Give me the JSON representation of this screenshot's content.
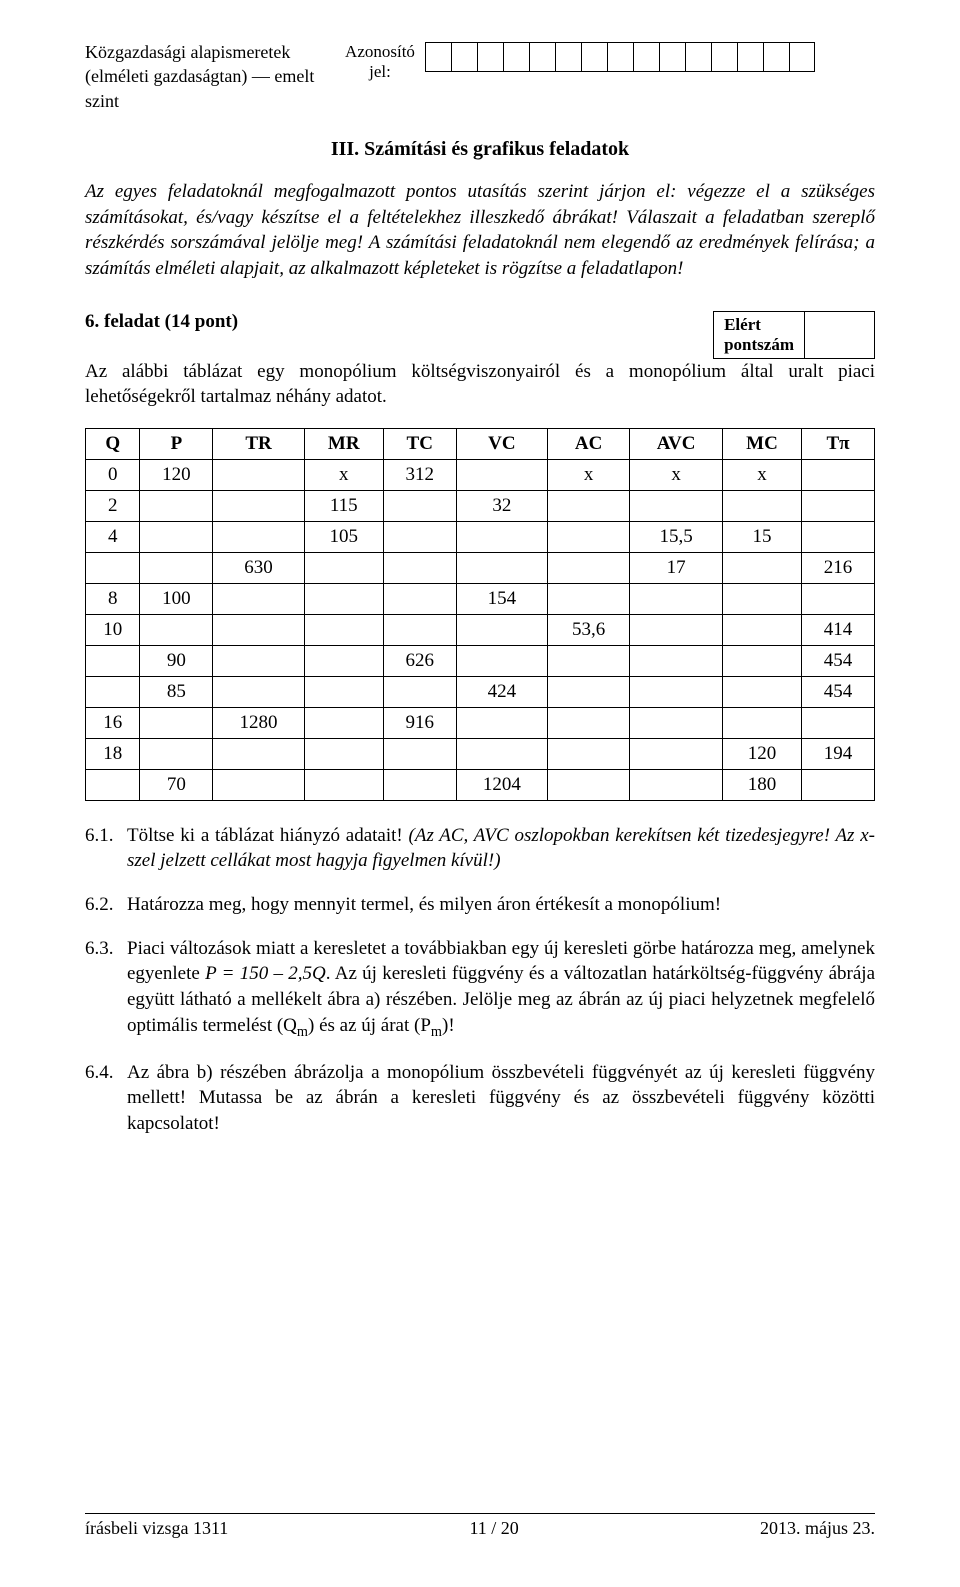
{
  "header": {
    "left1": "Közgazdasági alapismeretek",
    "left2": "(elméleti gazdaságtan) — emelt szint",
    "mid1": "Azonosító",
    "mid2": "jel:",
    "box_count": 15
  },
  "section_title": "III. Számítási és grafikus feladatok",
  "intro": {
    "t1": "Az egyes feladatoknál megfogalmazott pontos utasítás szerint járjon el: végezze el a szükséges számításokat, és/vagy készítse el a feltételekhez illeszkedő ábrákat! Válaszait a feladatban szereplő részkérdés sorszámával jelölje meg! A számítási feladatoknál nem elegendő az eredmények felírása; a számítás elméleti alapjait, az alkalmazott képleteket is rögzítse a feladatlapon!"
  },
  "task6": {
    "title": "6. feladat (14 pont)",
    "score_label1": "Elért",
    "score_label2": "pontszám",
    "text": "Az alábbi táblázat egy monopólium költségviszonyairól és a monopólium által uralt piaci lehetőségekről tartalmaz néhány adatot."
  },
  "table": {
    "headers": [
      "Q",
      "P",
      "TR",
      "MR",
      "TC",
      "VC",
      "AC",
      "AVC",
      "MC",
      "Tπ"
    ],
    "rows": [
      [
        "0",
        "120",
        "",
        "x",
        "312",
        "",
        "x",
        "x",
        "x",
        ""
      ],
      [
        "2",
        "",
        "",
        "115",
        "",
        "32",
        "",
        "",
        "",
        ""
      ],
      [
        "4",
        "",
        "",
        "105",
        "",
        "",
        "",
        "15,5",
        "15",
        ""
      ],
      [
        "",
        "",
        "630",
        "",
        "",
        "",
        "",
        "17",
        "",
        "216"
      ],
      [
        "8",
        "100",
        "",
        "",
        "",
        "154",
        "",
        "",
        "",
        ""
      ],
      [
        "10",
        "",
        "",
        "",
        "",
        "",
        "53,6",
        "",
        "",
        "414"
      ],
      [
        "",
        "90",
        "",
        "",
        "626",
        "",
        "",
        "",
        "",
        "454"
      ],
      [
        "",
        "85",
        "",
        "",
        "",
        "424",
        "",
        "",
        "",
        "454"
      ],
      [
        "16",
        "",
        "1280",
        "",
        "916",
        "",
        "",
        "",
        "",
        ""
      ],
      [
        "18",
        "",
        "",
        "",
        "",
        "",
        "",
        "",
        "120",
        "194"
      ],
      [
        "",
        "70",
        "",
        "",
        "",
        "1204",
        "",
        "",
        "180",
        ""
      ]
    ]
  },
  "q61": {
    "num": "6.1.",
    "a": "Töltse ki a táblázat hiányzó adatait! ",
    "b": "(Az AC, AVC oszlopokban kerekítsen két tizedesjegyre! Az x-szel jelzett cellákat most hagyja figyelmen kívül!)"
  },
  "q62": {
    "num": "6.2.",
    "a": "Határozza meg, hogy mennyit termel, és milyen áron értékesít a monopólium!"
  },
  "q63": {
    "num": "6.3.",
    "a": "Piaci változások miatt a keresletet a továbbiakban egy új keresleti görbe határozza meg, amelynek egyenlete ",
    "b": "P = 150 – 2,5Q",
    "c": ". Az új keresleti függvény és a változatlan határköltség-függvény ábrája együtt látható a mellékelt ábra a) részében. Jelölje meg az ábrán az új piaci helyzetnek megfelelő optimális termelést (Q",
    "d": ") és az új árat (P",
    "e": ")!"
  },
  "q64": {
    "num": "6.4.",
    "a": "Az ábra b) részében ábrázolja a monopólium összbevételi függvényét az új keresleti függvény mellett! Mutassa be az ábrán a keresleti függvény és az összbevételi függvény közötti kapcsolatot!"
  },
  "footer": {
    "left": "írásbeli vizsga 1311",
    "mid": "11 / 20",
    "right": "2013. május 23."
  }
}
